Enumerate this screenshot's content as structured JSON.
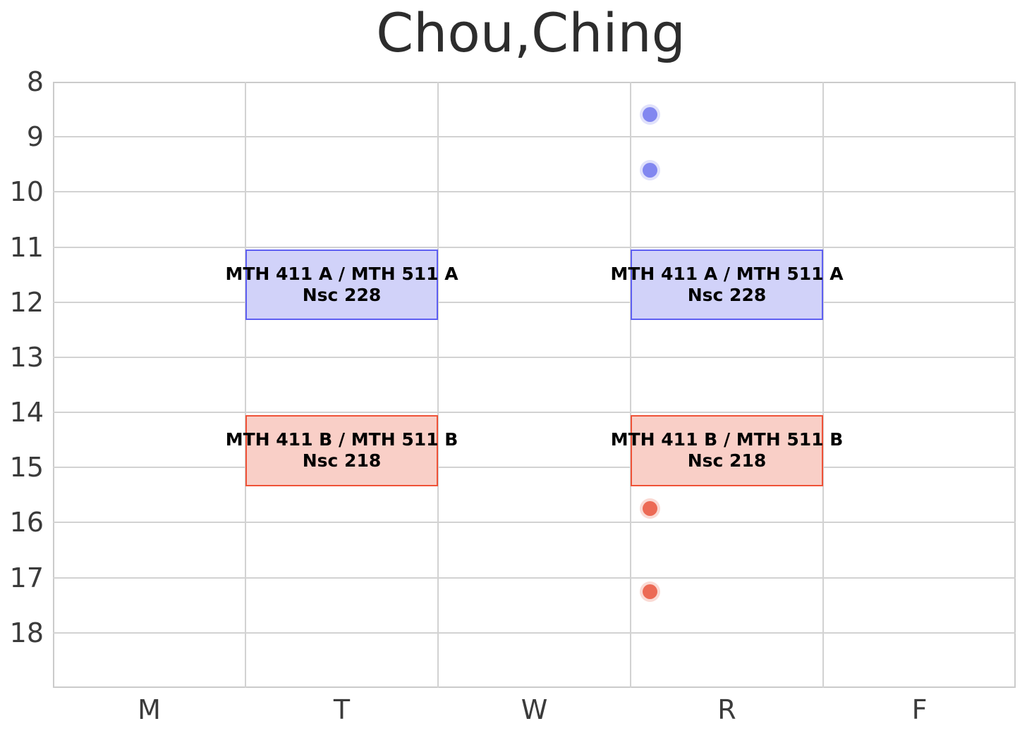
{
  "figure": {
    "title": "Chou,Ching"
  },
  "chart_data": {
    "type": "bar",
    "variant": "weekly-course-schedule-gantt",
    "title": "Chou,Ching",
    "xlabel": "",
    "ylabel": "",
    "x_categories": [
      "M",
      "T",
      "W",
      "R",
      "F"
    ],
    "y_tick_labels": [
      8,
      9,
      10,
      11,
      12,
      13,
      14,
      15,
      16,
      17,
      18
    ],
    "ylim": [
      8,
      19
    ],
    "y_axis_inverted": true,
    "y_unit": "hour-of-day-24h",
    "grid": true,
    "legend": "none",
    "events": [
      {
        "course": "MTH 411 A / MTH 511 A",
        "room": "Nsc 228",
        "days": [
          "T",
          "R"
        ],
        "start_hour": 11.05,
        "end_hour": 12.32,
        "fill": "#d1d2f9",
        "border": "#5e5ff2"
      },
      {
        "course": "MTH 411 B / MTH 511 B",
        "room": "Nsc 218",
        "days": [
          "T",
          "R"
        ],
        "start_hour": 14.05,
        "end_hour": 15.34,
        "fill": "#f9cfc7",
        "border": "#ef5237"
      }
    ],
    "points": [
      {
        "day": "R",
        "x_day_units": 3.1,
        "hour": 8.6,
        "color": "#8287f0"
      },
      {
        "day": "R",
        "x_day_units": 3.1,
        "hour": 9.6,
        "color": "#8287f0"
      },
      {
        "day": "R",
        "x_day_units": 3.1,
        "hour": 15.75,
        "color": "#ec6a55"
      },
      {
        "day": "R",
        "x_day_units": 3.1,
        "hour": 17.25,
        "color": "#ec6a55"
      }
    ]
  },
  "colors": {
    "background": "#ffffff",
    "grid": "#d2d2d2",
    "spine": "#cbcbcb",
    "tick_text": "#3b3b3b",
    "title_text": "#2d2d2d",
    "event_text": "#000000"
  }
}
